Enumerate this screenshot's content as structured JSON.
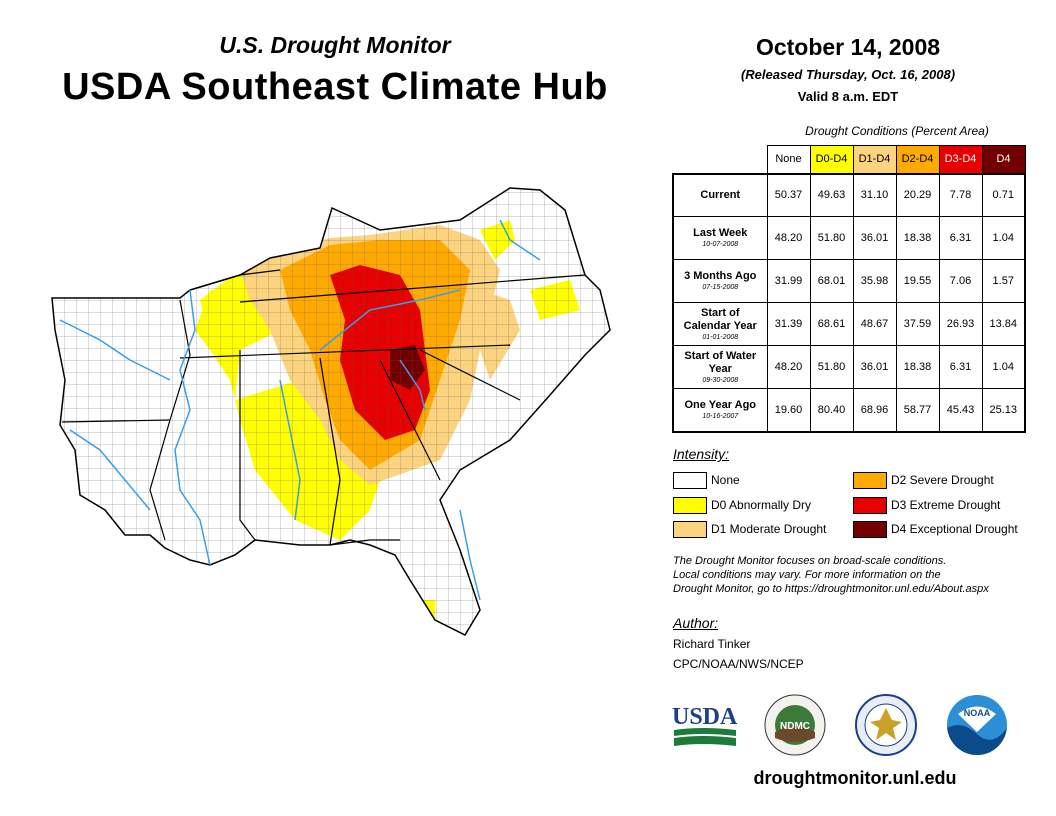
{
  "header": {
    "subtitle": "U.S. Drought Monitor",
    "title": "USDA Southeast Climate Hub",
    "date": "October 14, 2008",
    "released": "(Released Thursday, Oct. 16, 2008)",
    "valid": "Valid 8 a.m. EDT"
  },
  "table": {
    "caption": "Drought Conditions (Percent Area)",
    "columns": [
      "None",
      "D0-D4",
      "D1-D4",
      "D2-D4",
      "D3-D4",
      "D4"
    ],
    "column_colors": [
      "#ffffff",
      "#ffff00",
      "#fcd37f",
      "#ffaa00",
      "#e60000",
      "#730000"
    ],
    "column_text_colors": [
      "#000000",
      "#000000",
      "#000000",
      "#000000",
      "#ffffff",
      "#ffffff"
    ],
    "rows": [
      {
        "label": "Current",
        "date": "",
        "values": [
          "50.37",
          "49.63",
          "31.10",
          "20.29",
          "7.78",
          "0.71"
        ]
      },
      {
        "label": "Last Week",
        "date": "10-07-2008",
        "values": [
          "48.20",
          "51.80",
          "36.01",
          "18.38",
          "6.31",
          "1.04"
        ]
      },
      {
        "label": "3 Months Ago",
        "date": "07-15-2008",
        "values": [
          "31.99",
          "68.01",
          "35.98",
          "19.55",
          "7.06",
          "1.57"
        ]
      },
      {
        "label": "Start of Calendar Year",
        "date": "01-01-2008",
        "values": [
          "31.39",
          "68.61",
          "48.67",
          "37.59",
          "26.93",
          "13.84"
        ]
      },
      {
        "label": "Start of Water Year",
        "date": "09-30-2008",
        "values": [
          "48.20",
          "51.80",
          "36.01",
          "18.38",
          "6.31",
          "1.04"
        ]
      },
      {
        "label": "One Year Ago",
        "date": "10-16-2007",
        "values": [
          "19.60",
          "80.40",
          "68.96",
          "58.77",
          "45.43",
          "25.13"
        ]
      }
    ]
  },
  "legend": {
    "title": "Intensity:",
    "items": [
      {
        "label": "None",
        "color": "#ffffff"
      },
      {
        "label": "D0 Abnormally Dry",
        "color": "#ffff00"
      },
      {
        "label": "D1 Moderate Drought",
        "color": "#fcd37f"
      },
      {
        "label": "D2 Severe Drought",
        "color": "#ffaa00"
      },
      {
        "label": "D3 Extreme Drought",
        "color": "#e60000"
      },
      {
        "label": "D4 Exceptional Drought",
        "color": "#730000"
      }
    ]
  },
  "note": {
    "line1": "The Drought Monitor focuses on broad-scale conditions.",
    "line2": "Local conditions may vary. For more information on the",
    "line3": "Drought Monitor, go to https://droughtmonitor.unl.edu/About.aspx"
  },
  "author": {
    "title": "Author:",
    "name": "Richard Tinker",
    "org": "CPC/NOAA/NWS/NCEP"
  },
  "logos": {
    "usda": "USDA",
    "ndmc": "NDMC",
    "noaa": "NOAA"
  },
  "footer": {
    "url": "droughtmonitor.unl.edu"
  }
}
